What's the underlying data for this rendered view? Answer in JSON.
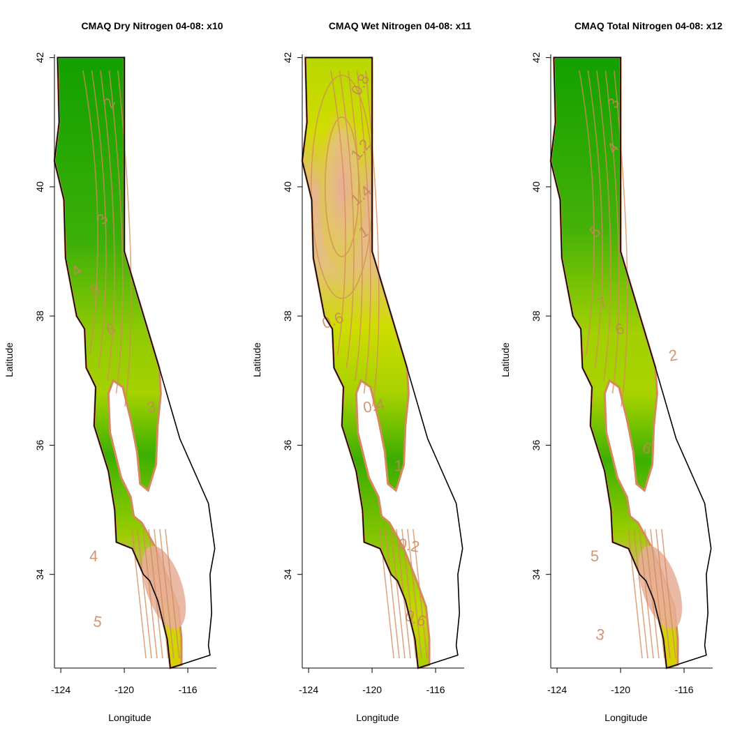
{
  "panels": [
    {
      "title": "CMAQ Dry Nitrogen 04-08: x10",
      "ylabel": "Latitude",
      "xlabel": "Longitude",
      "x_ticks": [
        "-124",
        "-120",
        "-116"
      ],
      "y_ticks": [
        "34",
        "36",
        "38",
        "40",
        "42"
      ],
      "contour_labels": [
        "2",
        "3",
        "4",
        "5",
        "6",
        "3",
        "4",
        "5"
      ],
      "colors": {
        "low": "#12a000",
        "mid": "#c2dc00",
        "high": "#e8ae98",
        "contour": "#d48a5a"
      }
    },
    {
      "title": "CMAQ Wet Nitrogen 04-08: x11",
      "ylabel": "Latitude",
      "xlabel": "Longitude",
      "x_ticks": [
        "-124",
        "-120",
        "-116"
      ],
      "y_ticks": [
        "34",
        "36",
        "38",
        "40",
        "42"
      ],
      "contour_labels": [
        "0.8",
        "1.2",
        "1.4",
        "1",
        "0.6",
        "0.4",
        "1",
        "0.2",
        "0.6"
      ],
      "colors": {
        "low": "#12a000",
        "mid": "#c2dc00",
        "high": "#e8ae98",
        "contour": "#d48a5a"
      }
    },
    {
      "title": "CMAQ Total Nitrogen 04-08: x12",
      "ylabel": "Latitude",
      "xlabel": "Longitude",
      "x_ticks": [
        "-124",
        "-120",
        "-116"
      ],
      "y_ticks": [
        "34",
        "36",
        "38",
        "40",
        "42"
      ],
      "contour_labels": [
        "3",
        "4",
        "5",
        "7",
        "6",
        "2",
        "5",
        "3",
        "6"
      ],
      "colors": {
        "low": "#12a000",
        "mid": "#c2dc00",
        "high": "#e8ae98",
        "contour": "#d48a5a"
      }
    }
  ]
}
